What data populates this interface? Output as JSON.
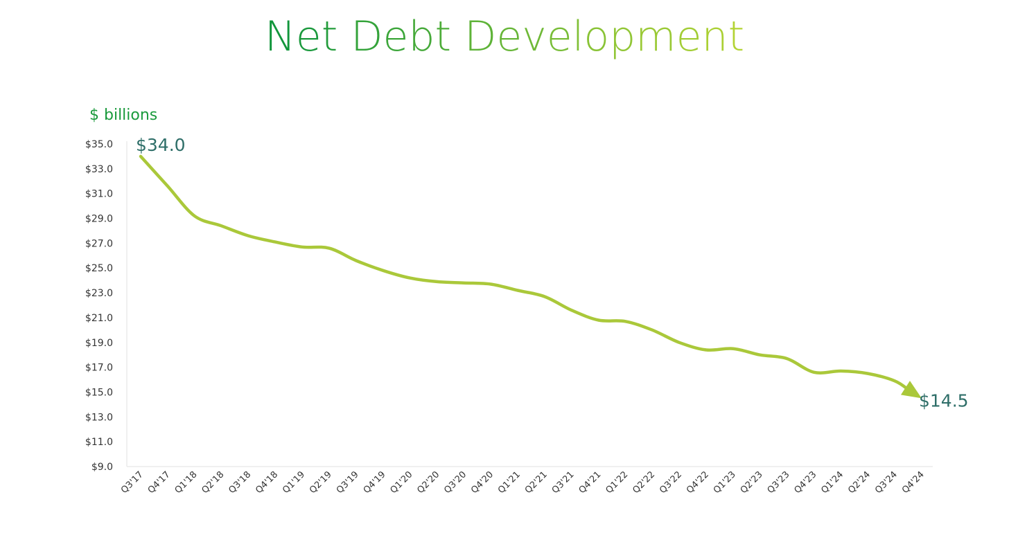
{
  "chart_data": {
    "type": "line",
    "title": "Net Debt Development",
    "title_gradient": [
      "#12963c",
      "#b3d334"
    ],
    "unit_label": "$ billions",
    "ylim": [
      9.0,
      35.0
    ],
    "yticks": [
      "$35.0",
      "$33.0",
      "$31.0",
      "$29.0",
      "$27.0",
      "$25.0",
      "$23.0",
      "$21.0",
      "$19.0",
      "$17.0",
      "$15.0",
      "$13.0",
      "$11.0",
      "$9.0"
    ],
    "ytick_values": [
      35,
      33,
      31,
      29,
      27,
      25,
      23,
      21,
      19,
      17,
      15,
      13,
      11,
      9
    ],
    "categories": [
      "Q3'17",
      "Q4'17",
      "Q1'18",
      "Q2'18",
      "Q3'18",
      "Q4'18",
      "Q1'19",
      "Q2'19",
      "Q3'19",
      "Q4'19",
      "Q1'20",
      "Q2'20",
      "Q3'20",
      "Q4'20",
      "Q1'21",
      "Q2'21",
      "Q3'21",
      "Q4'21",
      "Q1'22",
      "Q2'22",
      "Q3'22",
      "Q4'22",
      "Q1'23",
      "Q2'23",
      "Q3'23",
      "Q4'23",
      "Q1'24",
      "Q2'24",
      "Q3'24",
      "Q4'24"
    ],
    "series": [
      {
        "values": [
          34.0,
          31.6,
          29.2,
          28.4,
          27.6,
          27.1,
          26.7,
          26.6,
          25.6,
          24.8,
          24.2,
          23.9,
          23.8,
          23.7,
          23.2,
          22.7,
          21.6,
          20.8,
          20.7,
          20.0,
          19.0,
          18.4,
          18.5,
          18.0,
          17.7,
          16.6,
          16.7,
          16.5,
          15.9,
          14.5
        ],
        "color": "#aac83a"
      }
    ],
    "annotations": [
      {
        "text": "$34.0",
        "category": "Q3'17",
        "value": 34.0,
        "color": "#2e6e68"
      },
      {
        "text": "$14.5",
        "category": "Q4'24",
        "value": 14.5,
        "color": "#2e6e68"
      }
    ],
    "end_marker": "arrow",
    "grid": false
  }
}
